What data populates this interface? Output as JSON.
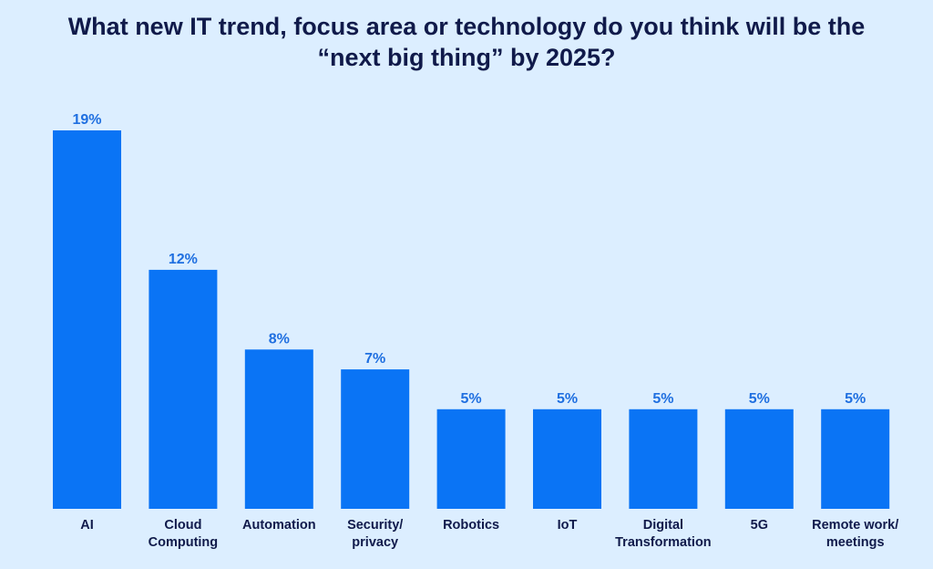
{
  "chart_data": {
    "type": "bar",
    "title": [
      "What new IT trend, focus area or technology do you think will be the",
      "“next big thing” by 2025?"
    ],
    "categories": [
      [
        "AI"
      ],
      [
        "Cloud",
        "Computing"
      ],
      [
        "Automation"
      ],
      [
        "Security/",
        "privacy"
      ],
      [
        "Robotics"
      ],
      [
        "IoT"
      ],
      [
        "Digital",
        "Transformation"
      ],
      [
        "5G"
      ],
      [
        "Remote work/",
        "meetings"
      ]
    ],
    "values": [
      19,
      12,
      8,
      7,
      5,
      5,
      5,
      5,
      5
    ],
    "value_labels": [
      "19%",
      "12%",
      "8%",
      "7%",
      "5%",
      "5%",
      "5%",
      "5%",
      "5%"
    ],
    "unit": "%",
    "xlabel": "",
    "ylabel": "",
    "ylim": [
      0,
      19
    ],
    "grid": false,
    "bar_color": "#0a74f5"
  }
}
